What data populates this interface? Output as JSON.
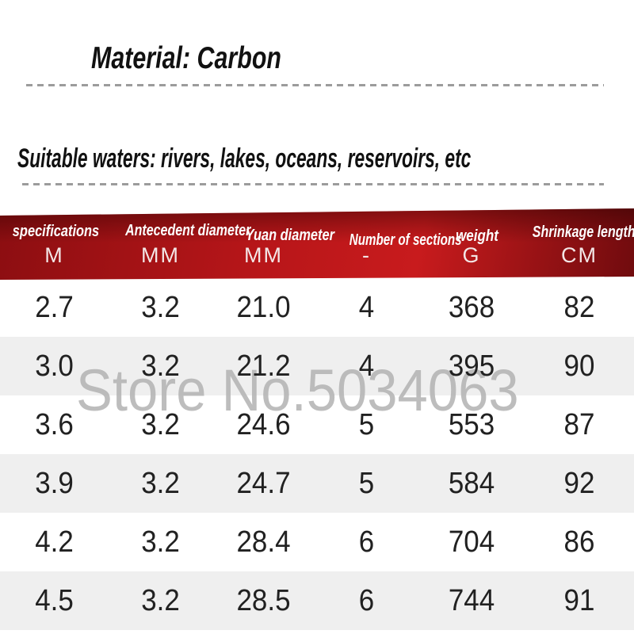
{
  "page": {
    "material_title": "Material: Carbon",
    "waters_title": "Suitable waters: rivers, lakes, oceans, reservoirs, etc",
    "watermark": "Store No.5034063"
  },
  "table": {
    "columns": [
      {
        "label": "specifications",
        "unit": "M"
      },
      {
        "label": "Antecedent diameter",
        "unit": "MM"
      },
      {
        "label": "Yuan diameter",
        "unit": "MM"
      },
      {
        "label": "Number of sections",
        "unit": "-"
      },
      {
        "label": "weight",
        "unit": "G"
      },
      {
        "label": "Shrinkage length",
        "unit": "CM"
      }
    ],
    "rows": [
      [
        "2.7",
        "3.2",
        "21.0",
        "4",
        "368",
        "82"
      ],
      [
        "3.0",
        "3.2",
        "21.2",
        "4",
        "395",
        "90"
      ],
      [
        "3.6",
        "3.2",
        "24.6",
        "5",
        "553",
        "87"
      ],
      [
        "3.9",
        "3.2",
        "24.7",
        "5",
        "584",
        "92"
      ],
      [
        "4.2",
        "3.2",
        "28.4",
        "6",
        "704",
        "86"
      ],
      [
        "4.5",
        "3.2",
        "28.5",
        "6",
        "744",
        "91"
      ]
    ]
  },
  "colors": {
    "header_red_dark": "#700b0e",
    "header_red_bright": "#c81b1d",
    "row_alt_gray": "#efefef",
    "dash_gray": "#9c9c9c",
    "watermark_gray": "#b2b2b2",
    "text_dark": "#212121"
  }
}
